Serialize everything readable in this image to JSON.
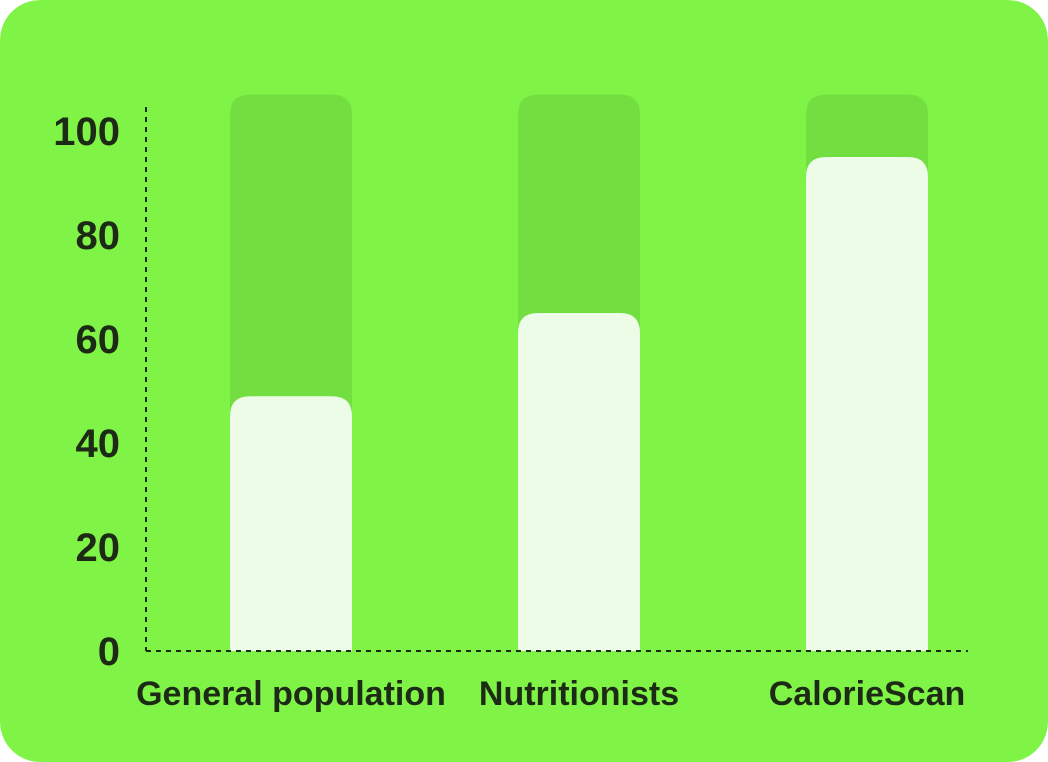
{
  "colors": {
    "card_background": "#80f446",
    "bar_track": "#72de40",
    "bar_fill": "#ecfce6",
    "axis": "#1c2a16",
    "text": "#1c2a16"
  },
  "chart_data": {
    "type": "bar",
    "title": "",
    "xlabel": "",
    "ylabel": "",
    "categories": [
      "General population",
      "Nutritionists",
      "CalorieScan"
    ],
    "values": [
      49,
      65,
      95
    ],
    "ylim": [
      0,
      100
    ],
    "y_ticks": [
      "0",
      "20",
      "40",
      "60",
      "80",
      "100"
    ],
    "bar_track_max": 107,
    "grid": false,
    "legend": "none"
  }
}
